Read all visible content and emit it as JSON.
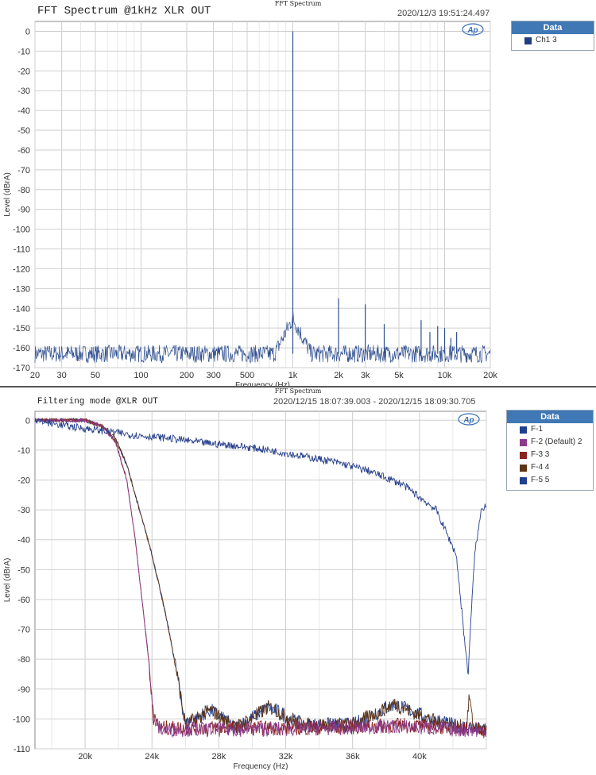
{
  "chart_data": [
    {
      "type": "line",
      "title": "FFT Spectrum",
      "page_title": "FFT Spectrum @1kHz XLR OUT",
      "timestamp": "2020/12/3 19:51:24.497",
      "xlabel": "Frequency (Hz)",
      "ylabel": "Level (dBrA)",
      "xscale": "log",
      "xlim": [
        20,
        20000
      ],
      "ylim": [
        -170,
        5
      ],
      "grid": true,
      "legend_position": "top-right",
      "legend_title": "Data",
      "x_ticks": [
        20,
        30,
        50,
        100,
        200,
        300,
        500,
        1000,
        2000,
        3000,
        5000,
        10000,
        20000
      ],
      "x_tick_labels": [
        "20",
        "30",
        "50",
        "100",
        "200",
        "300",
        "500",
        "1k",
        "2k",
        "3k",
        "5k",
        "10k",
        "20k"
      ],
      "y_ticks": [
        0,
        -10,
        -20,
        -30,
        -40,
        -50,
        -60,
        -70,
        -80,
        -90,
        -100,
        -110,
        -120,
        -130,
        -140,
        -150,
        -160,
        -170
      ],
      "y_tick_labels": [
        "0",
        "-10",
        "-20",
        "-30",
        "-40",
        "-50",
        "-60",
        "-70",
        "-80",
        "-90",
        "-100",
        "-110",
        "-120",
        "-130",
        "-140",
        "-150",
        "-160",
        "-170"
      ],
      "series": [
        {
          "name": "Ch1",
          "legend_index": "3",
          "color": "#2f4f8f",
          "noise_floor_db": -163,
          "x": [
            1000,
            2000,
            3000,
            4000,
            7000,
            8000,
            9000,
            10000,
            11000,
            12000
          ],
          "y": [
            0,
            -135,
            -138,
            -148,
            -146,
            -152,
            -149,
            -150,
            -155,
            -152
          ]
        }
      ]
    },
    {
      "type": "line",
      "title": "FFT Spectrum",
      "page_title": "Filtering mode @XLR OUT",
      "timestamp": "2020/12/15 18:07:39.003 - 2020/12/15 18:09:30.705",
      "xlabel": "Frequency (Hz)",
      "ylabel": "Level (dBrA)",
      "xlim": [
        17000,
        44000
      ],
      "ylim": [
        -110,
        3
      ],
      "grid": true,
      "legend_position": "top-right",
      "legend_title": "Data",
      "x_ticks": [
        20000,
        24000,
        28000,
        32000,
        36000,
        40000
      ],
      "x_tick_labels": [
        "20k",
        "24k",
        "28k",
        "32k",
        "36k",
        "40k"
      ],
      "y_ticks": [
        0,
        -10,
        -20,
        -30,
        -40,
        -50,
        -60,
        -70,
        -80,
        -90,
        -100,
        -110
      ],
      "y_tick_labels": [
        "0",
        "-10",
        "-20",
        "-30",
        "-40",
        "-50",
        "-60",
        "-70",
        "-80",
        "-90",
        "-100",
        "-110"
      ],
      "series": [
        {
          "name": "F-1",
          "legend_index": "",
          "color": "#27408b",
          "x": [
            17000,
            19000,
            21000,
            23000,
            25000,
            27000,
            29000,
            31000,
            33000,
            35000,
            37000,
            39000,
            41000,
            42200,
            42900,
            43300,
            43700,
            44000
          ],
          "y": [
            0,
            -2,
            -3.5,
            -5,
            -6,
            -7.5,
            -8.5,
            -10,
            -12,
            -14,
            -17,
            -21.5,
            -30,
            -45,
            -85,
            -45,
            -30,
            -28
          ]
        },
        {
          "name": "F-2 (Default)",
          "legend_index": "2",
          "color": "#8b3a8b",
          "x": [
            17000,
            19000,
            20000,
            21000,
            21800,
            22500,
            23000,
            23400,
            23800,
            24100,
            24500,
            30000,
            35000,
            39000,
            42000,
            44000
          ],
          "y": [
            0,
            0,
            0,
            -2,
            -7,
            -20,
            -40,
            -60,
            -80,
            -100,
            -103.5,
            -103.5,
            -103,
            -102.5,
            -103.5,
            -104
          ]
        },
        {
          "name": "F-3",
          "legend_index": "3",
          "color": "#8b2323",
          "x": [
            17000,
            19000,
            20000,
            21000,
            21800,
            22500,
            23000,
            23400,
            23800,
            24100,
            24500,
            30000,
            35000,
            39000,
            42000,
            44000
          ],
          "y": [
            0,
            0,
            0,
            -2,
            -7,
            -20,
            -40,
            -60,
            -80,
            -100,
            -103,
            -103,
            -103,
            -102,
            -103,
            -103.5
          ]
        },
        {
          "name": "F-4",
          "legend_index": "4",
          "color": "#5c3317",
          "x": [
            17000,
            19000,
            20000,
            21000,
            21800,
            22500,
            23000,
            23500,
            24000,
            24500,
            25000,
            25500,
            26000,
            27500,
            29000,
            31000,
            33000,
            36000,
            38500,
            41000,
            42800,
            43000,
            43200,
            44000
          ],
          "y": [
            0,
            0,
            0,
            -2,
            -6,
            -15,
            -25,
            -35,
            -45,
            -57,
            -70,
            -85,
            -102,
            -97,
            -103,
            -96,
            -102,
            -102,
            -95,
            -101,
            -103,
            -92,
            -103,
            -104
          ]
        },
        {
          "name": "F-5",
          "legend_index": "5",
          "color": "#1f3f8f",
          "x": [
            17000,
            19000,
            20000,
            21000,
            21800,
            22500,
            23000,
            23500,
            24000,
            24500,
            25000,
            25500,
            26000,
            27500,
            29000,
            31000,
            33000,
            36000,
            38500,
            41000,
            44000
          ],
          "y": [
            0,
            0,
            0,
            -2,
            -6,
            -15,
            -25,
            -35,
            -45,
            -57,
            -70,
            -85,
            -102,
            -97,
            -103,
            -96,
            -102,
            -102,
            -95,
            -101,
            -104
          ]
        }
      ]
    }
  ]
}
